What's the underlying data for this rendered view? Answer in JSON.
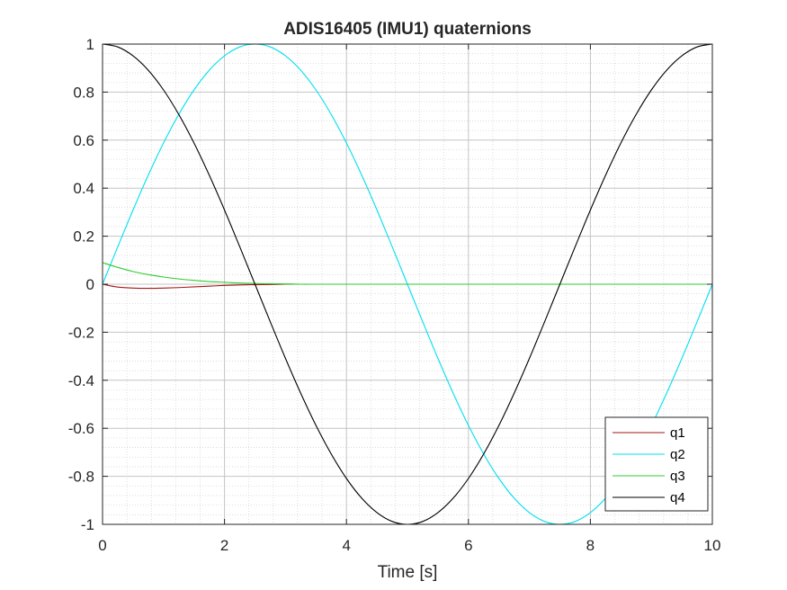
{
  "chart_data": {
    "type": "line",
    "title": "ADIS16405 (IMU1) quaternions",
    "xlabel": "Time [s]",
    "ylabel": "",
    "xlim": [
      0,
      10
    ],
    "ylim": [
      -1,
      1
    ],
    "xticks": [
      0,
      2,
      4,
      6,
      8,
      10
    ],
    "xtick_labels": [
      "0",
      "2",
      "4",
      "6",
      "8",
      "10"
    ],
    "yticks": [
      -1,
      -0.8,
      -0.6,
      -0.4,
      -0.2,
      0,
      0.2,
      0.4,
      0.6,
      0.8,
      1
    ],
    "ytick_labels": [
      "-1",
      "-0.8",
      "-0.6",
      "-0.4",
      "-0.2",
      "0",
      "0.2",
      "0.4",
      "0.6",
      "0.8",
      "1"
    ],
    "grid": true,
    "minor_grid": true,
    "legend_position": "bottom-right",
    "x": [
      0,
      0.25,
      0.5,
      0.75,
      1,
      1.25,
      1.5,
      1.75,
      2,
      2.25,
      2.5,
      2.75,
      3,
      3.25,
      3.5,
      3.75,
      4,
      4.25,
      4.5,
      4.75,
      5,
      5.25,
      5.5,
      5.75,
      6,
      6.25,
      6.5,
      6.75,
      7,
      7.25,
      7.5,
      7.75,
      8,
      8.25,
      8.5,
      8.75,
      9,
      9.25,
      9.5,
      9.75,
      10
    ],
    "series": [
      {
        "name": "q1",
        "color": "#a31515",
        "values": [
          0,
          -0.012,
          -0.016,
          -0.017,
          -0.016,
          -0.014,
          -0.011,
          -0.008,
          -0.005,
          -0.003,
          -0.002,
          -0.001,
          0,
          0,
          0,
          0,
          0,
          0,
          0,
          0,
          0,
          0,
          0,
          0,
          0,
          0,
          0,
          0,
          0,
          0,
          0,
          0,
          0,
          0,
          0,
          0,
          0,
          0,
          0,
          0,
          0
        ]
      },
      {
        "name": "q2",
        "color": "#00e0ee",
        "values": [
          0,
          0.156,
          0.309,
          0.454,
          0.588,
          0.707,
          0.809,
          0.891,
          0.951,
          0.988,
          1,
          0.988,
          0.951,
          0.891,
          0.809,
          0.707,
          0.588,
          0.454,
          0.309,
          0.156,
          0,
          -0.156,
          -0.309,
          -0.454,
          -0.588,
          -0.707,
          -0.809,
          -0.891,
          -0.951,
          -0.988,
          -1,
          -0.988,
          -0.951,
          -0.891,
          -0.809,
          -0.707,
          -0.588,
          -0.454,
          -0.309,
          -0.156,
          0
        ]
      },
      {
        "name": "q3",
        "color": "#2ccc2c",
        "values": [
          0.09,
          0.07,
          0.053,
          0.04,
          0.03,
          0.022,
          0.016,
          0.011,
          0.008,
          0.005,
          0.003,
          0.002,
          0.001,
          0,
          0,
          0,
          0,
          0,
          0,
          0,
          0,
          0,
          0,
          0,
          0,
          0,
          0,
          0,
          0,
          0,
          0,
          0,
          0,
          0,
          0,
          0,
          0,
          0,
          0,
          0,
          0
        ]
      },
      {
        "name": "q4",
        "color": "#000000",
        "values": [
          1,
          0.988,
          0.951,
          0.891,
          0.809,
          0.707,
          0.588,
          0.454,
          0.309,
          0.156,
          0,
          -0.156,
          -0.309,
          -0.454,
          -0.588,
          -0.707,
          -0.809,
          -0.891,
          -0.951,
          -0.988,
          -1,
          -0.988,
          -0.951,
          -0.891,
          -0.809,
          -0.707,
          -0.588,
          -0.454,
          -0.309,
          -0.156,
          0,
          0.156,
          0.309,
          0.454,
          0.588,
          0.707,
          0.809,
          0.891,
          0.951,
          0.988,
          1
        ]
      }
    ]
  }
}
